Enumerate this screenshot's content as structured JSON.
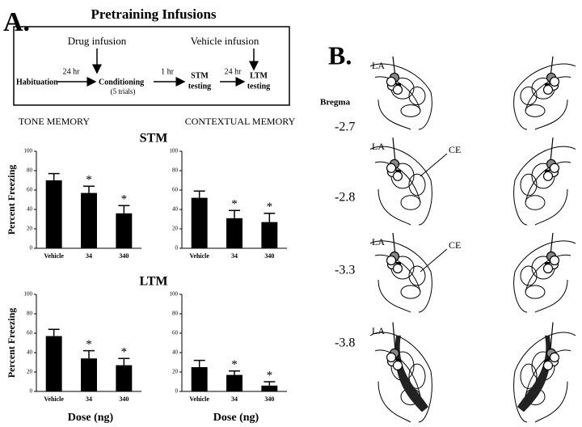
{
  "panel_a": {
    "label": "A.",
    "title": "Pretraining Infusions",
    "timeline": {
      "habituation": "Habituation",
      "conditioning": "Conditioning",
      "conditioning_note": "(5 trials)",
      "stm_testing": [
        "STM",
        "testing"
      ],
      "ltm_testing": [
        "LTM",
        "testing"
      ],
      "drug_infusion": "Drug infusion",
      "vehicle_infusion": "Vehicle infusion",
      "intervals": [
        "24 hr",
        "1 hr",
        "24 hr"
      ]
    },
    "column_headers": [
      "TONE MEMORY",
      "CONTEXTUAL MEMORY"
    ],
    "row_titles": [
      "STM",
      "LTM"
    ],
    "x_labels": [
      "Dose (ng)",
      "Dose (ng)"
    ]
  },
  "chart_data": [
    {
      "type": "bar",
      "categories": [
        "Vehicle",
        "34",
        "340"
      ],
      "values": [
        70,
        57,
        36
      ],
      "errors": [
        7,
        7,
        8
      ],
      "color": "#000000",
      "annotations": [
        null,
        "*",
        "*"
      ],
      "ylim": [
        0,
        100
      ],
      "yticks": [
        0,
        20,
        40,
        60,
        80,
        100
      ],
      "y_label": "Percent Freezing"
    },
    {
      "type": "bar",
      "categories": [
        "Vehicle",
        "34",
        "340"
      ],
      "values": [
        52,
        31,
        27
      ],
      "errors": [
        7,
        8,
        9
      ],
      "color": "#000000",
      "annotations": [
        null,
        "*",
        "*"
      ],
      "ylim": [
        0,
        100
      ],
      "yticks": [
        0,
        20,
        40,
        60,
        80,
        100
      ]
    },
    {
      "type": "bar",
      "categories": [
        "Vehicle",
        "34",
        "340"
      ],
      "values": [
        57,
        34,
        27
      ],
      "errors": [
        7,
        8,
        7
      ],
      "color": "#000000",
      "annotations": [
        null,
        "*",
        "*"
      ],
      "ylim": [
        0,
        100
      ],
      "yticks": [
        0,
        20,
        40,
        60,
        80,
        100
      ],
      "y_label": "Percent Freezing"
    },
    {
      "type": "bar",
      "categories": [
        "Vehicle",
        "34",
        "340"
      ],
      "values": [
        25,
        17,
        6
      ],
      "errors": [
        7,
        4,
        4
      ],
      "color": "#000000",
      "annotations": [
        null,
        "*",
        "*"
      ],
      "ylim": [
        0,
        100
      ],
      "yticks": [
        0,
        20,
        40,
        60,
        80,
        100
      ]
    }
  ],
  "panel_b": {
    "label": "B.",
    "bregma_title": "Bregma",
    "sections": [
      {
        "bregma": "-2.7",
        "labels": [
          "LA"
        ]
      },
      {
        "bregma": "-2.8",
        "labels": [
          "LA",
          "CE"
        ]
      },
      {
        "bregma": "-3.3",
        "labels": [
          "LA",
          "CE"
        ]
      },
      {
        "bregma": "-3.8",
        "labels": [
          "LA"
        ]
      }
    ]
  }
}
